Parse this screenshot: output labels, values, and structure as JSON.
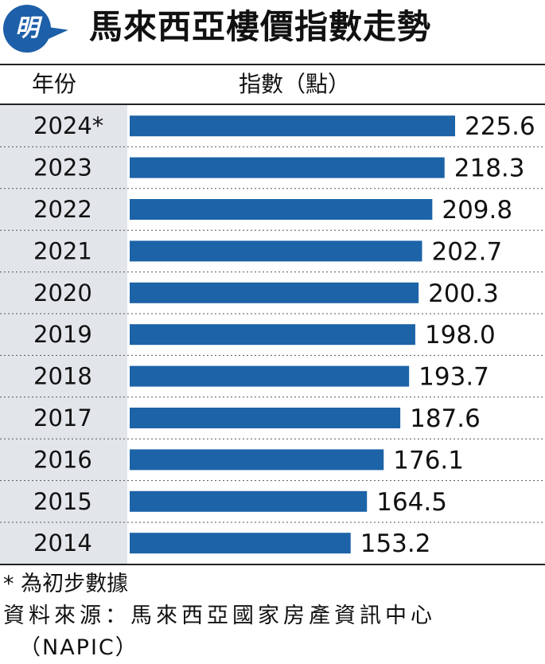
{
  "header": {
    "logo_char": "明",
    "title": "馬來西亞樓價指數走勢"
  },
  "columns": {
    "year": "年份",
    "index": "指數（點）"
  },
  "chart_data": {
    "type": "bar",
    "orientation": "horizontal",
    "categories": [
      "2024*",
      "2023",
      "2022",
      "2021",
      "2020",
      "2019",
      "2018",
      "2017",
      "2016",
      "2015",
      "2014"
    ],
    "values": [
      225.6,
      218.3,
      209.8,
      202.7,
      200.3,
      198.0,
      193.7,
      187.6,
      176.1,
      164.5,
      153.2
    ],
    "value_labels": [
      "225.6",
      "218.3",
      "209.8",
      "202.7",
      "200.3",
      "198.0",
      "193.7",
      "187.6",
      "176.1",
      "164.5",
      "153.2"
    ],
    "xlim": [
      0,
      225.6
    ],
    "bar_color": "#1d63a8",
    "title": "馬來西亞樓價指數走勢",
    "xlabel": "指數（點）",
    "ylabel": "年份"
  },
  "notes": {
    "prelim": "* 為初步數據",
    "source": "資料來源：馬來西亞國家房產資訊中心",
    "source_abbr": "（NAPIC）"
  },
  "colors": {
    "accent": "#1d5fa8",
    "year_band": "#e2e6ea"
  }
}
